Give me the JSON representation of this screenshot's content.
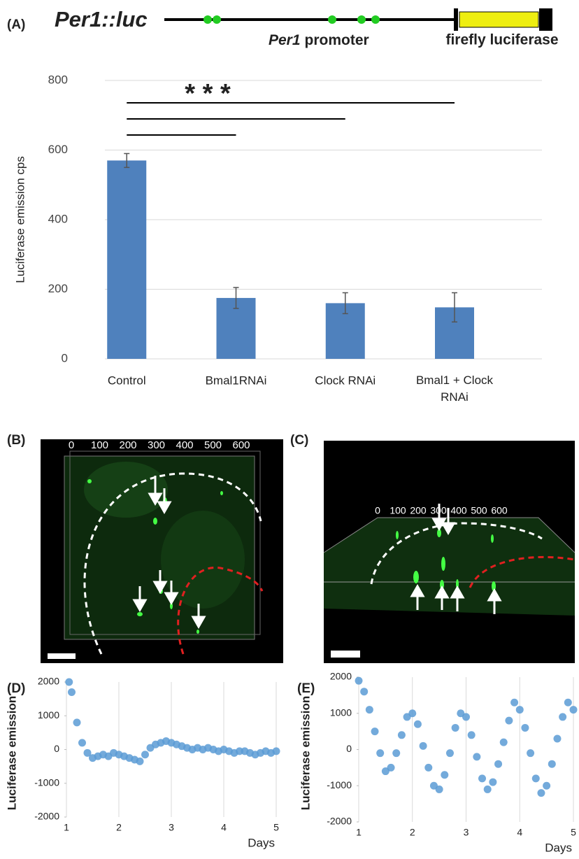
{
  "panel_labels": [
    "(A)",
    "(B)",
    "(C)",
    "(D)",
    "(E)"
  ],
  "construct": {
    "name": "Per1::luc",
    "promoter_gene": "Per1",
    "promoter_word": "promoter",
    "reporter": "firefly luciferase"
  },
  "image_panels": [
    {
      "scale_labels": [
        "0",
        "100",
        "200",
        "300",
        "400",
        "500",
        "600"
      ]
    },
    {
      "scale_labels": [
        "0",
        "100",
        "200",
        "300",
        "400",
        "500",
        "600"
      ]
    }
  ],
  "chart_data": [
    {
      "type": "bar",
      "y_label": "Luciferase emission cps",
      "categories": [
        "Control",
        "Bmal1RNAi",
        "Clock RNAi",
        "Bmal1 + Clock RNAi"
      ],
      "values": [
        570,
        175,
        160,
        148
      ],
      "errors": [
        20,
        30,
        30,
        42
      ],
      "color": "#4f81bd",
      "ylim": [
        0,
        800
      ],
      "yticks": [
        0,
        200,
        400,
        600,
        800
      ],
      "grid": true,
      "annotation": "* * *"
    },
    {
      "type": "scatter",
      "x_label": "Days",
      "y_label": "Luciferase emission",
      "color": "#5b9bd5",
      "xlim": [
        1,
        5
      ],
      "xticks": [
        1,
        2,
        3,
        4,
        5
      ],
      "ylim": [
        -2000,
        2000
      ],
      "yticks": [
        -2000,
        -1000,
        0,
        1000,
        2000
      ],
      "grid": true,
      "x": [
        1.05,
        1.1,
        1.2,
        1.3,
        1.4,
        1.5,
        1.6,
        1.7,
        1.8,
        1.9,
        2.0,
        2.1,
        2.2,
        2.3,
        2.4,
        2.5,
        2.6,
        2.7,
        2.8,
        2.9,
        3.0,
        3.1,
        3.2,
        3.3,
        3.4,
        3.5,
        3.6,
        3.7,
        3.8,
        3.9,
        4.0,
        4.1,
        4.2,
        4.3,
        4.4,
        4.5,
        4.6,
        4.7,
        4.8,
        4.9,
        5.0
      ],
      "values": [
        2000,
        1700,
        800,
        200,
        -100,
        -250,
        -200,
        -150,
        -200,
        -100,
        -150,
        -200,
        -250,
        -300,
        -350,
        -150,
        50,
        150,
        200,
        250,
        200,
        150,
        100,
        50,
        0,
        50,
        0,
        50,
        0,
        -50,
        0,
        -50,
        -100,
        -50,
        -50,
        -100,
        -150,
        -100,
        -50,
        -100,
        -50
      ]
    },
    {
      "type": "scatter",
      "x_label": "Days",
      "y_label": "Luciferase emission",
      "color": "#5b9bd5",
      "xlim": [
        1,
        5
      ],
      "xticks": [
        1,
        2,
        3,
        4,
        5
      ],
      "ylim": [
        -2000,
        2000
      ],
      "yticks": [
        -2000,
        -1000,
        0,
        1000,
        2000
      ],
      "grid": true,
      "x": [
        1.0,
        1.1,
        1.2,
        1.3,
        1.4,
        1.5,
        1.6,
        1.7,
        1.8,
        1.9,
        2.0,
        2.1,
        2.2,
        2.3,
        2.4,
        2.5,
        2.6,
        2.7,
        2.8,
        2.9,
        3.0,
        3.1,
        3.2,
        3.3,
        3.4,
        3.5,
        3.6,
        3.7,
        3.8,
        3.9,
        4.0,
        4.1,
        4.2,
        4.3,
        4.4,
        4.5,
        4.6,
        4.7,
        4.8,
        4.9,
        5.0
      ],
      "values": [
        1900,
        1600,
        1100,
        500,
        -100,
        -600,
        -500,
        -100,
        400,
        900,
        1000,
        700,
        100,
        -500,
        -1000,
        -1100,
        -700,
        -100,
        600,
        1000,
        900,
        400,
        -200,
        -800,
        -1100,
        -900,
        -400,
        200,
        800,
        1300,
        1100,
        600,
        -100,
        -800,
        -1200,
        -1000,
        -400,
        300,
        900,
        1300,
        1100
      ]
    }
  ]
}
